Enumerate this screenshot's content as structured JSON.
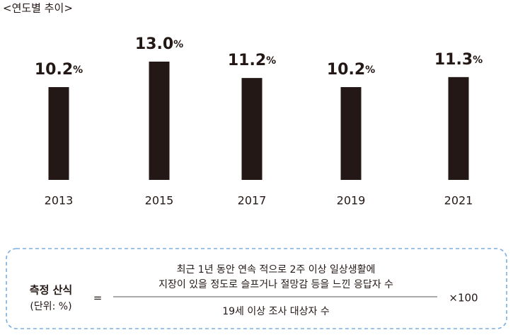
{
  "chart_data": {
    "type": "bar",
    "title": "<연도별 추이>",
    "categories": [
      "2013",
      "2015",
      "2017",
      "2019",
      "2021"
    ],
    "values": [
      10.2,
      13.0,
      11.2,
      10.2,
      11.3
    ],
    "value_labels": [
      "10.2%",
      "13.0%",
      "11.2%",
      "10.2%",
      "11.3%"
    ],
    "color": "#231815"
  },
  "formula": {
    "label": "측정 산식",
    "unit": "(단위: %)",
    "equals": "=",
    "numerator_lines": [
      "최근 1년 동안 연속 적으로 2주 이상 일상생활에",
      "지장이 있을 정도로 슬프거나 절망감 등을 느낀 응답자 수"
    ],
    "denominator": "19세 이상 조사 대상자 수",
    "multiplier": "×100"
  }
}
